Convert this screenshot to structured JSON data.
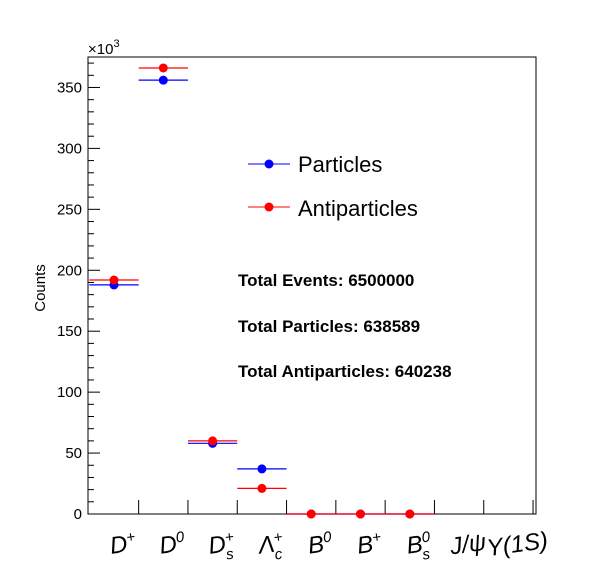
{
  "chart_data": {
    "type": "scatter",
    "title": "",
    "xlabel": "",
    "ylabel": "Counts",
    "ylim": [
      0,
      375000
    ],
    "y_multiplier_label": "×10",
    "y_multiplier_exponent": "3",
    "y_ticks": [
      0,
      50,
      100,
      150,
      200,
      250,
      300,
      350
    ],
    "categories": [
      {
        "base": "D",
        "sup": "+",
        "sub": ""
      },
      {
        "base": "D",
        "sup": "0",
        "sub": ""
      },
      {
        "base": "D",
        "sup": "+",
        "sub": "s"
      },
      {
        "base": "Λ",
        "sup": "+",
        "sub": "c"
      },
      {
        "base": "B",
        "sup": "0",
        "sub": ""
      },
      {
        "base": "B",
        "sup": "+",
        "sub": ""
      },
      {
        "base": "B",
        "sup": "0",
        "sub": "s"
      },
      {
        "base": "J/ψ",
        "sup": "",
        "sub": ""
      },
      {
        "base": "Υ(1S)",
        "sup": "",
        "sub": ""
      }
    ],
    "series": [
      {
        "name": "Particles",
        "color": "#0000ff",
        "values": [
          188000,
          356000,
          58000,
          37000,
          0,
          0,
          0,
          null,
          null
        ]
      },
      {
        "name": "Antiparticles",
        "color": "#ff0000",
        "values": [
          192000,
          366000,
          60000,
          21000,
          0,
          0,
          0,
          null,
          null
        ]
      }
    ],
    "legend": [
      "Particles",
      "Antiparticles"
    ],
    "legend_position": "center-right"
  },
  "stats": {
    "events_label": "Total Events: 6500000",
    "particles_label": "Total Particles: 638589",
    "antiparticles_label": "Total Antiparticles: 640238"
  }
}
